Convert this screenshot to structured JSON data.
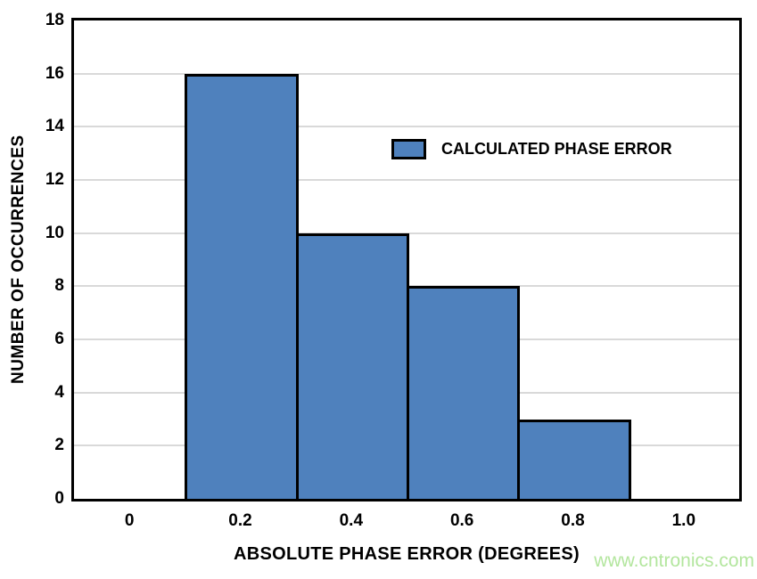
{
  "watermark": {
    "text": "www.cntronics.com",
    "color": "#b3e69e"
  },
  "chart_data": {
    "type": "bar",
    "subtype": "histogram",
    "title": "",
    "xlabel": "ABSOLUTE PHASE ERROR (DEGREES)",
    "ylabel": "NUMBER OF OCCURRENCES",
    "xlim": [
      -0.1,
      1.1
    ],
    "ylim": [
      0,
      18
    ],
    "x_ticks": [
      0,
      0.2,
      0.4,
      0.6,
      0.8,
      1.0
    ],
    "x_tick_labels": [
      "0",
      "0.2",
      "0.4",
      "0.6",
      "0.8",
      "1.0"
    ],
    "y_tick_step": 2,
    "y_tick_labels": [
      "0",
      "2",
      "4",
      "6",
      "8",
      "10",
      "12",
      "14",
      "16",
      "18"
    ],
    "grid": "horizontal",
    "legend": {
      "label": "CALCULATED PHASE ERROR",
      "position": "inside-upper-right"
    },
    "bins": [
      {
        "range": [
          0.1,
          0.3
        ],
        "count": 16
      },
      {
        "range": [
          0.3,
          0.5
        ],
        "count": 10
      },
      {
        "range": [
          0.5,
          0.7
        ],
        "count": 8
      },
      {
        "range": [
          0.7,
          0.9
        ],
        "count": 3
      }
    ],
    "colors": {
      "bar_fill": "#4f81bd",
      "bar_border": "#000000",
      "gridline": "#d9d9d9",
      "axis_frame": "#000000",
      "text": "#000000"
    }
  }
}
